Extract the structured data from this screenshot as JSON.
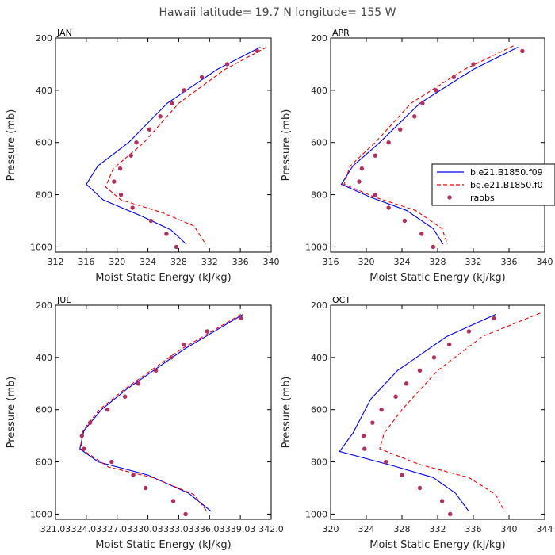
{
  "suptitle": "Hawaii  latitude= 19.7 N longitude= 155 W",
  "legend": {
    "entries": [
      {
        "label": "b.e21.B1850.f09",
        "color": "#0000ee",
        "style": "solid"
      },
      {
        "label": "bg.e21.B1850.f0",
        "color": "#ee0000",
        "style": "dashed"
      },
      {
        "label": "raobs",
        "color": "#b03060",
        "style": "marker"
      }
    ]
  },
  "chart_data": [
    {
      "type": "line",
      "title": "JAN",
      "xlabel": "Moist Static Energy (kJ/kg)",
      "ylabel": "Pressure (mb)",
      "xlim": [
        312,
        340
      ],
      "ylim": [
        1020,
        200
      ],
      "xticks": [
        "312",
        "316",
        "320",
        "324",
        "328",
        "332",
        "336",
        "340"
      ],
      "xtick_values": [
        312,
        316,
        320,
        324,
        328,
        332,
        336,
        340
      ],
      "yticks": [
        "200",
        "400",
        "600",
        "800",
        "1000"
      ],
      "ytick_values": [
        200,
        400,
        600,
        800,
        1000
      ],
      "series": [
        {
          "name": "b.e21.B1850.f09",
          "color": "#0000ee",
          "style": "solid",
          "x": [
            338.6,
            333,
            326.5,
            321.5,
            317.5,
            316,
            318.2,
            323,
            327,
            329
          ],
          "y": [
            235,
            320,
            450,
            600,
            690,
            760,
            820,
            880,
            935,
            990
          ]
        },
        {
          "name": "bg.e21.B1850.f0",
          "color": "#ee0000",
          "style": "dashed",
          "x": [
            339.4,
            334,
            328,
            323.5,
            319.5,
            318.5,
            320.5,
            326,
            330,
            331.5
          ],
          "y": [
            235,
            320,
            450,
            600,
            700,
            770,
            820,
            870,
            920,
            990
          ]
        },
        {
          "name": "raobs",
          "color": "#b03060",
          "style": "marker",
          "x": [
            338.2,
            334.3,
            331,
            328.7,
            327.1,
            325.6,
            324.2,
            322.5,
            321.8,
            320.4,
            319.6,
            320.5,
            322,
            324.4,
            326.4,
            327.7
          ],
          "y": [
            250,
            300,
            350,
            400,
            450,
            500,
            550,
            600,
            650,
            700,
            750,
            800,
            850,
            900,
            950,
            1000
          ]
        }
      ]
    },
    {
      "type": "line",
      "title": "APR",
      "xlabel": "Moist Static Energy (kJ/kg)",
      "ylabel": "Pressure (mb)",
      "xlim": [
        316,
        340
      ],
      "ylim": [
        1020,
        200
      ],
      "xticks": [
        "316",
        "320",
        "324",
        "328",
        "332",
        "336",
        "340"
      ],
      "xtick_values": [
        316,
        320,
        324,
        328,
        332,
        336,
        340
      ],
      "yticks": [
        "200",
        "400",
        "600",
        "800",
        "1000"
      ],
      "ytick_values": [
        200,
        400,
        600,
        800,
        1000
      ],
      "series": [
        {
          "name": "b.e21.B1850.f09",
          "color": "#0000ee",
          "style": "solid",
          "x": [
            337,
            332,
            326,
            321.5,
            318.5,
            317.2,
            320.5,
            324.5,
            327.5,
            328.6
          ],
          "y": [
            235,
            320,
            450,
            600,
            690,
            760,
            810,
            860,
            930,
            990
          ]
        },
        {
          "name": "bg.e21.B1850.f0",
          "color": "#ee0000",
          "style": "dashed",
          "x": [
            336.5,
            331,
            325,
            321,
            318.2,
            317.5,
            321,
            325.5,
            328.5,
            329.1
          ],
          "y": [
            230,
            320,
            450,
            600,
            690,
            760,
            810,
            860,
            930,
            990
          ]
        },
        {
          "name": "raobs",
          "color": "#b03060",
          "style": "marker",
          "x": [
            337.5,
            332,
            329.8,
            327.8,
            326.3,
            325.4,
            323.8,
            322.5,
            321,
            319.5,
            319.2,
            321,
            322.5,
            324.3,
            326.2,
            327.5
          ],
          "y": [
            250,
            300,
            350,
            400,
            450,
            500,
            550,
            600,
            650,
            700,
            750,
            800,
            850,
            900,
            950,
            1000
          ]
        }
      ]
    },
    {
      "type": "line",
      "title": "JUL",
      "xlabel": "Moist Static Energy (kJ/kg)",
      "ylabel": "Pressure (mb)",
      "xlim": [
        321.03,
        342.03
      ],
      "ylim": [
        1020,
        200
      ],
      "xticks": [
        "321.03",
        "324.03",
        "327.03",
        "330.03",
        "333.03",
        "336.03",
        "339.03",
        "342.0"
      ],
      "xtick_values": [
        321.03,
        324.03,
        327.03,
        330.03,
        333.03,
        336.03,
        339.03,
        342.03
      ],
      "yticks": [
        "200",
        "400",
        "600",
        "800",
        "1000"
      ],
      "ytick_values": [
        200,
        400,
        600,
        800,
        1000
      ],
      "series": [
        {
          "name": "b.e21.B1850.f09",
          "color": "#0000ee",
          "style": "solid",
          "x": [
            339.3,
            333.5,
            328,
            325.5,
            323.8,
            323.4,
            325.2,
            330,
            334,
            336.2
          ],
          "y": [
            235,
            370,
            520,
            600,
            680,
            750,
            800,
            850,
            920,
            990
          ]
        },
        {
          "name": "bg.e21.B1850.f0",
          "color": "#ee0000",
          "style": "dashed",
          "x": [
            339.1,
            333.2,
            327.8,
            325.3,
            323.7,
            323.5,
            326.2,
            330.5,
            334.5,
            335.8
          ],
          "y": [
            235,
            370,
            520,
            600,
            680,
            750,
            820,
            860,
            925,
            990
          ]
        },
        {
          "name": "raobs",
          "color": "#b03060",
          "style": "marker",
          "x": [
            339.1,
            335.8,
            333.5,
            332.3,
            330.8,
            329.1,
            327.8,
            326.1,
            324.4,
            323.6,
            323.8,
            326.5,
            328.6,
            329.8,
            332.5,
            333.7
          ],
          "y": [
            250,
            300,
            350,
            400,
            450,
            500,
            550,
            600,
            650,
            700,
            750,
            800,
            850,
            900,
            950,
            1000
          ]
        }
      ]
    },
    {
      "type": "line",
      "title": "OCT",
      "xlabel": "Moist Static Energy (kJ/kg)",
      "ylabel": "Pressure (mb)",
      "xlim": [
        320,
        344
      ],
      "ylim": [
        1020,
        200
      ],
      "xticks": [
        "320",
        "324",
        "328",
        "332",
        "336",
        "340",
        "344"
      ],
      "xtick_values": [
        320,
        324,
        328,
        332,
        336,
        340,
        344
      ],
      "yticks": [
        "200",
        "400",
        "600",
        "800",
        "1000"
      ],
      "ytick_values": [
        200,
        400,
        600,
        800,
        1000
      ],
      "series": [
        {
          "name": "b.e21.B1850.f09",
          "color": "#0000ee",
          "style": "solid",
          "x": [
            338.5,
            333,
            327.5,
            324.5,
            322.5,
            321,
            327,
            331.5,
            334,
            335.5
          ],
          "y": [
            235,
            320,
            450,
            560,
            690,
            760,
            815,
            860,
            920,
            990
          ]
        },
        {
          "name": "bg.e21.B1850.f0",
          "color": "#ee0000",
          "style": "dashed",
          "x": [
            343.5,
            337,
            332,
            328,
            326,
            325.5,
            330,
            335.5,
            338.5,
            339.5
          ],
          "y": [
            230,
            320,
            450,
            600,
            690,
            750,
            810,
            860,
            925,
            990
          ]
        },
        {
          "name": "raobs",
          "color": "#b03060",
          "style": "marker",
          "x": [
            338.3,
            335.5,
            333.3,
            331.6,
            330,
            328.5,
            327.3,
            325.7,
            324.7,
            323.7,
            323.8,
            326.2,
            328,
            330,
            332.5,
            333.4
          ],
          "y": [
            250,
            300,
            350,
            400,
            450,
            500,
            550,
            600,
            650,
            700,
            750,
            800,
            850,
            900,
            950,
            1000
          ]
        }
      ]
    }
  ]
}
